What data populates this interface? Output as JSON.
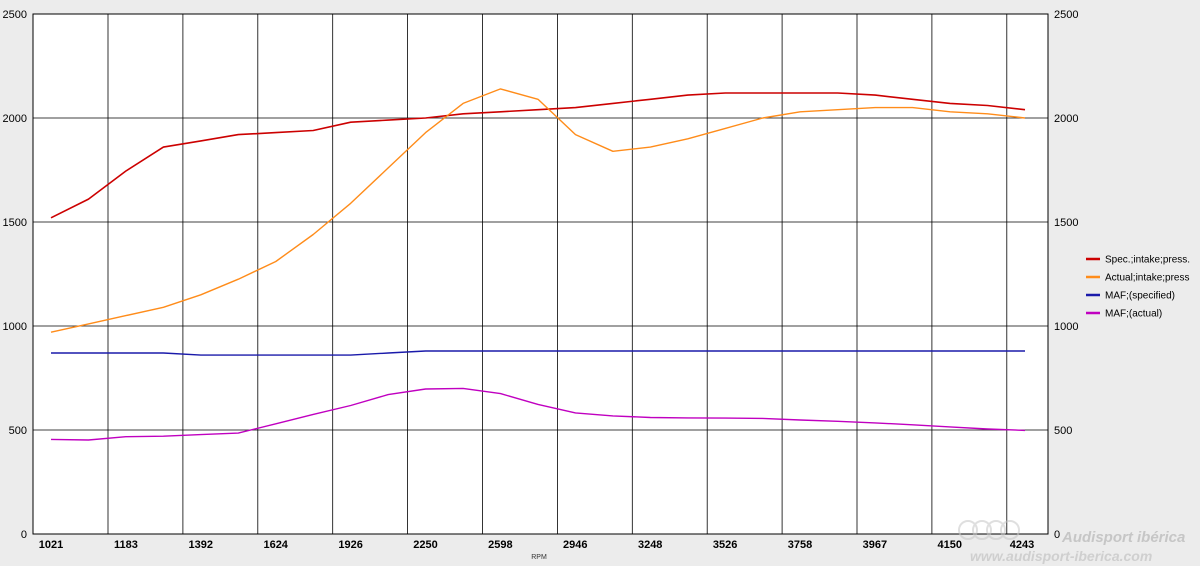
{
  "chart_data": {
    "type": "line",
    "title": "",
    "xlabel": "RPM",
    "ylabel": "",
    "ylim": [
      0,
      2500
    ],
    "y_ticks": [
      0,
      500,
      1000,
      1500,
      2000,
      2500
    ],
    "y_tick_labels": [
      "0",
      "500",
      "1000",
      "1500",
      "2000",
      "2500"
    ],
    "y_right_tick_labels": [
      "0",
      "500",
      "1000",
      "1500",
      "2000",
      "2500"
    ],
    "x_ticks": [
      1021,
      1183,
      1392,
      1624,
      1926,
      2250,
      2598,
      2946,
      3248,
      3526,
      3758,
      3967,
      4150,
      4243
    ],
    "x_tick_labels": [
      "1021",
      "1183",
      "1392",
      "1624",
      "1926",
      "2250",
      "2598",
      "2946",
      "3248",
      "3526",
      "3758",
      "3967",
      "4150",
      "4243"
    ],
    "grid": true,
    "legend_position": "right",
    "series": [
      {
        "name": "Spec.;intake;press.",
        "color": "#cc0000",
        "values": [
          1520,
          1610,
          1745,
          1860,
          1890,
          1920,
          1930,
          1940,
          1980,
          1990,
          2000,
          2020,
          2030,
          2040,
          2050,
          2070,
          2090,
          2110,
          2120,
          2120,
          2120,
          2120,
          2110,
          2090,
          2070,
          2060,
          2040
        ]
      },
      {
        "name": "Actual;intake;press",
        "color": "#ff8c1a",
        "values": [
          970,
          1010,
          1050,
          1090,
          1150,
          1225,
          1310,
          1440,
          1590,
          1760,
          1930,
          2070,
          2140,
          2090,
          1920,
          1840,
          1860,
          1900,
          1950,
          2000,
          2030,
          2040,
          2050,
          2050,
          2030,
          2020,
          2000
        ]
      },
      {
        "name": "MAF;(specified)",
        "color": "#1a1aaa",
        "values": [
          870,
          870,
          870,
          870,
          860,
          860,
          860,
          860,
          860,
          870,
          880,
          880,
          880,
          880,
          880,
          880,
          880,
          880,
          880,
          880,
          880,
          880,
          880,
          880,
          880,
          880,
          880
        ]
      },
      {
        "name": "MAF;(actual)",
        "color": "#c000c0",
        "values": [
          455,
          452,
          468,
          470,
          478,
          485,
          530,
          575,
          618,
          670,
          697,
          700,
          675,
          623,
          582,
          568,
          560,
          558,
          557,
          556,
          548,
          542,
          534,
          525,
          515,
          505,
          498
        ]
      }
    ]
  },
  "watermark": {
    "brand": "Audisport ibérica",
    "url": "www.audisport-iberica.com"
  }
}
